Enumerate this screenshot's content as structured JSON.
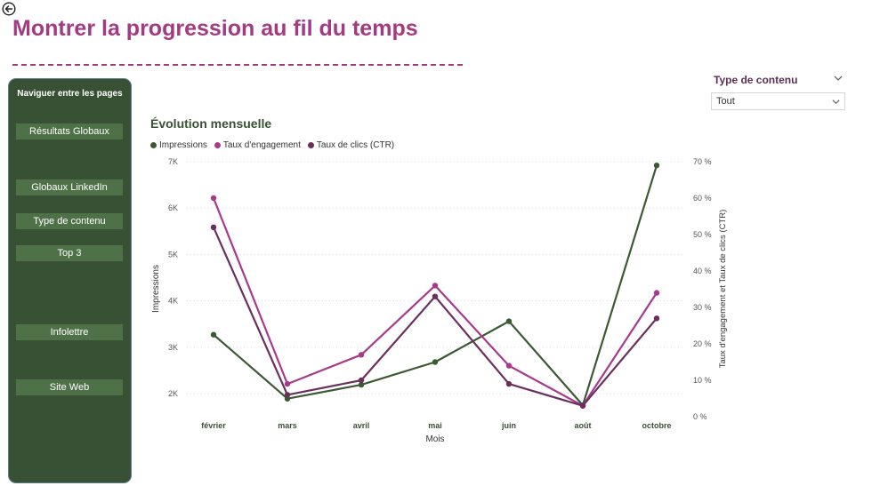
{
  "page": {
    "title": "Montrer la progression au fil du temps",
    "back_icon": "back-arrow-icon"
  },
  "nav": {
    "heading": "Naviguer entre les pages",
    "buttons": [
      {
        "label": "Résultats Globaux"
      },
      {
        "label": "Globaux LinkedIn"
      },
      {
        "label": "Type de contenu"
      },
      {
        "label": "Top 3"
      },
      {
        "label": "Infolettre"
      },
      {
        "label": "Site Web"
      }
    ]
  },
  "slicer": {
    "title": "Type de contenu",
    "value": "Tout"
  },
  "colors": {
    "impressions": "#3b5a33",
    "engagement": "#a83a8c",
    "ctr": "#6b2f5e",
    "nav_bg": "#385034",
    "accent": "#a23a84"
  },
  "chart_data": {
    "type": "line",
    "title": "Évolution mensuelle",
    "categories": [
      "février",
      "mars",
      "avril",
      "mai",
      "juin",
      "août",
      "octobre"
    ],
    "xlabel": "Mois",
    "ylabel": "Impressions",
    "y2label": "Taux d'engagement et Taux de clics (CTR)",
    "ylim": [
      1500,
      7000
    ],
    "y_ticks": [
      "2K",
      "3K",
      "4K",
      "5K",
      "6K",
      "7K"
    ],
    "y_tick_values": [
      2000,
      3000,
      4000,
      5000,
      6000,
      7000
    ],
    "y2lim": [
      0,
      70
    ],
    "y2_ticks": [
      "0 %",
      "10 %",
      "20 %",
      "30 %",
      "40 %",
      "50 %",
      "60 %",
      "70 %"
    ],
    "y2_tick_values": [
      0,
      10,
      20,
      30,
      40,
      50,
      60,
      70
    ],
    "grid": true,
    "legend_position": "top-left",
    "series": [
      {
        "name": "Impressions",
        "axis": "left",
        "values": [
          3270,
          1890,
          2190,
          2680,
          3560,
          1750,
          6920
        ]
      },
      {
        "name": "Taux d'engagement",
        "axis": "right",
        "values": [
          60,
          9,
          17,
          36,
          14,
          3,
          34
        ]
      },
      {
        "name": "Taux de clics (CTR)",
        "axis": "right",
        "values": [
          52,
          6,
          10,
          33,
          9,
          3,
          27
        ]
      }
    ]
  }
}
